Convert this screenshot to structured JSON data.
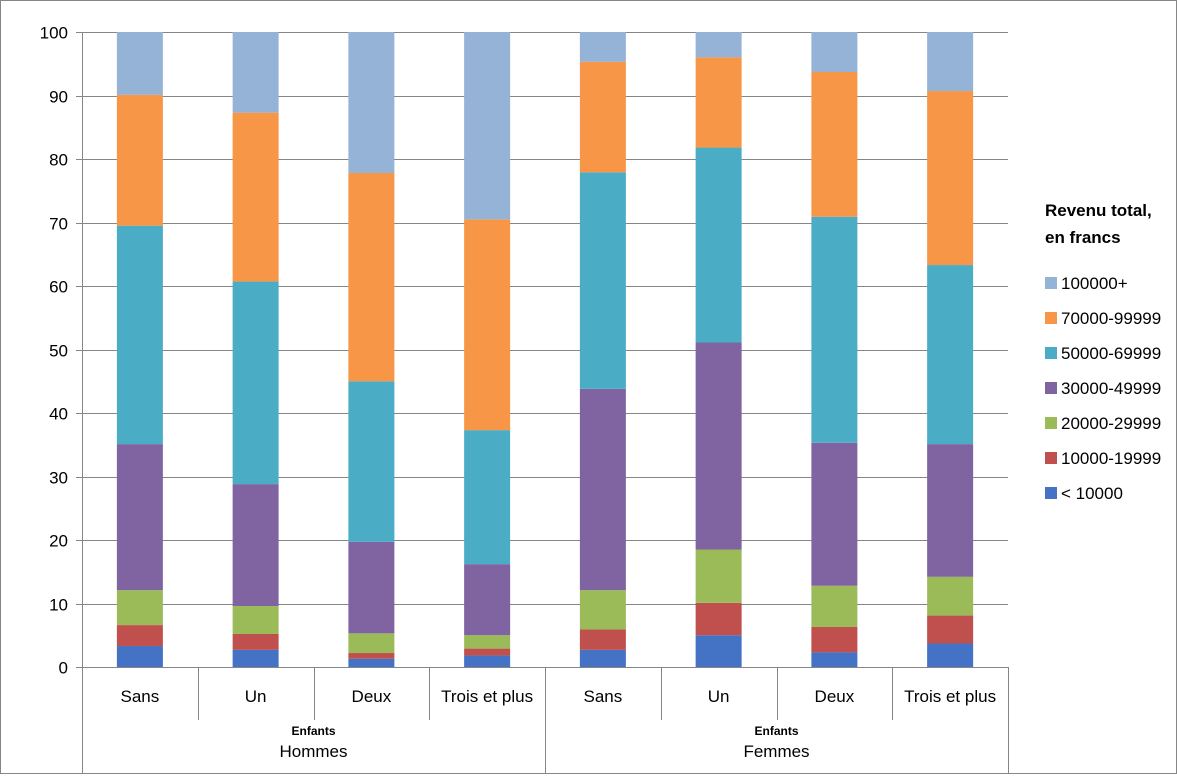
{
  "chart_data": {
    "type": "bar",
    "stacked": true,
    "categories": [
      "Sans",
      "Un",
      "Deux",
      "Trois et plus",
      "Sans",
      "Un",
      "Deux",
      "Trois et plus"
    ],
    "groups": [
      {
        "label": "Hommes",
        "sublabel": "Enfants",
        "categories": [
          "Sans",
          "Un",
          "Deux",
          "Trois et plus"
        ]
      },
      {
        "label": "Femmes",
        "sublabel": "Enfants",
        "categories": [
          "Sans",
          "Un",
          "Deux",
          "Trois et plus"
        ]
      }
    ],
    "series": [
      {
        "name": "< 10000",
        "color": "#4472C4",
        "values": [
          3.3,
          2.7,
          1.3,
          1.8,
          2.7,
          5.0,
          2.3,
          3.7
        ]
      },
      {
        "name": "10000-19999",
        "color": "#C0504D",
        "values": [
          3.3,
          2.5,
          0.9,
          1.1,
          3.2,
          5.1,
          4.0,
          4.4
        ]
      },
      {
        "name": "20000-29999",
        "color": "#9BBB59",
        "values": [
          5.5,
          4.4,
          3.1,
          2.1,
          6.2,
          8.4,
          6.5,
          6.1
        ]
      },
      {
        "name": "30000-49999",
        "color": "#8064A2",
        "values": [
          23.0,
          19.2,
          14.4,
          11.2,
          31.7,
          32.6,
          22.5,
          20.9
        ]
      },
      {
        "name": "50000-69999",
        "color": "#4BACC6",
        "values": [
          34.4,
          31.9,
          25.3,
          21.1,
          34.1,
          30.7,
          35.6,
          28.2
        ]
      },
      {
        "name": "70000-99999",
        "color": "#F79646",
        "values": [
          20.6,
          26.6,
          32.8,
          33.2,
          17.4,
          14.2,
          22.8,
          27.4
        ]
      },
      {
        "name": "100000+",
        "color": "#95B3D7",
        "values": [
          9.9,
          12.7,
          22.2,
          29.5,
          4.7,
          4.0,
          6.3,
          9.3
        ]
      }
    ],
    "ylim": [
      0,
      100
    ],
    "yticks": [
      0,
      10,
      20,
      30,
      40,
      50,
      60,
      70,
      80,
      90,
      100
    ],
    "legend": {
      "title_lines": [
        "Revenu total,",
        "en francs"
      ],
      "position": "right"
    },
    "grid": true
  }
}
